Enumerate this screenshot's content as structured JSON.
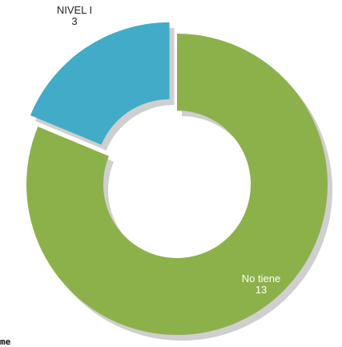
{
  "chart_data": {
    "type": "pie",
    "variant": "donut-exploded",
    "title": "",
    "slices": [
      {
        "label": "No tiene",
        "value": 13,
        "color": "#8db14a"
      },
      {
        "label": "NIVEL I",
        "value": 3,
        "color": "#42abc8"
      }
    ],
    "start": "12 o'clock",
    "direction": "clockwise"
  },
  "stray_text": "me"
}
